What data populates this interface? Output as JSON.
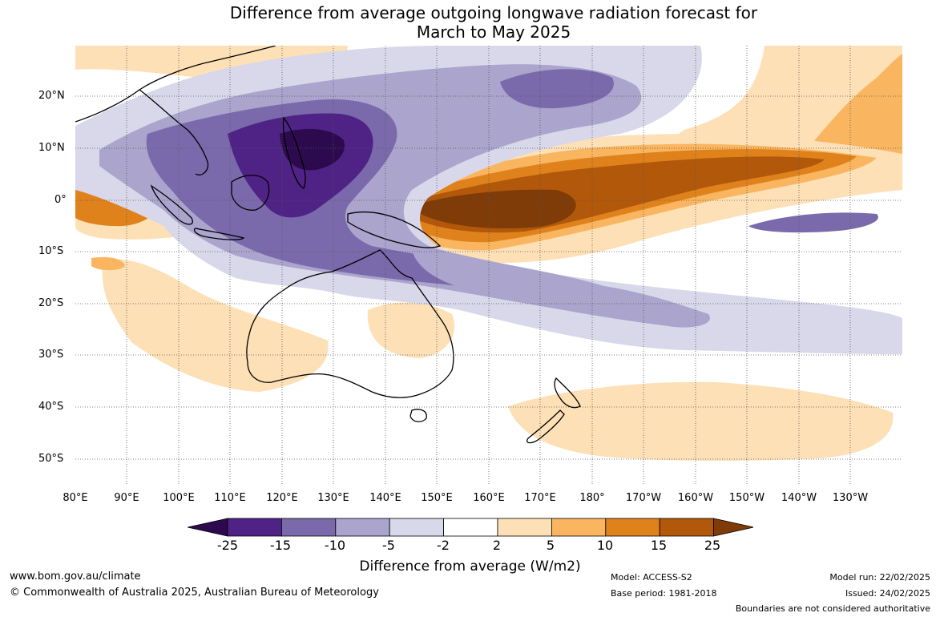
{
  "title": {
    "line1": "Difference from average outgoing longwave radiation forecast for",
    "line2": "March to May 2025"
  },
  "map": {
    "lat_labels": [
      "20°N",
      "10°N",
      "0°",
      "10°S",
      "20°S",
      "30°S",
      "40°S",
      "50°S"
    ],
    "lon_labels": [
      "80°E",
      "90°E",
      "100°E",
      "110°E",
      "120°E",
      "130°E",
      "140°E",
      "150°E",
      "160°E",
      "170°E",
      "180°",
      "170°W",
      "160°W",
      "150°W",
      "140°W",
      "130°W"
    ]
  },
  "colorbar": {
    "ticks": [
      "-25",
      "-15",
      "-10",
      "-5",
      "-2",
      "2",
      "5",
      "10",
      "15",
      "25"
    ],
    "colors": [
      "#2d0a4e",
      "#4f2385",
      "#7a6aab",
      "#aba4cd",
      "#d8d8ea",
      "#ffffff",
      "#fde0b6",
      "#fab560",
      "#e0821c",
      "#b2580a",
      "#7f3b08"
    ],
    "title": "Difference from average (W/m2)"
  },
  "footer": {
    "website": "www.bom.gov.au/climate",
    "copyright": "© Commonwealth of Australia 2025, Australian Bureau of Meteorology",
    "model": "Model: ACCESS-S2",
    "base_period": "Base period: 1981-2018",
    "model_run": "Model run: 22/02/2025",
    "issued": "Issued: 24/02/2025",
    "disclaimer": "Boundaries are not considered authoritative"
  }
}
